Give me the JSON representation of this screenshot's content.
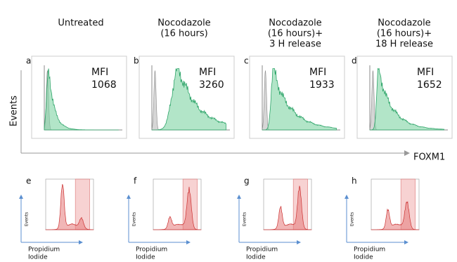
{
  "columns": [
    {
      "title": [
        "Untreated"
      ]
    },
    {
      "title": [
        "Nocodazole",
        "(16 hours)"
      ]
    },
    {
      "title": [
        "Nocodazole",
        "(16 hours)+",
        "3 H release"
      ]
    },
    {
      "title": [
        "Nocodazole",
        "(16 hours)+",
        "18 H release"
      ]
    }
  ],
  "top_panels": [
    {
      "letter": "a",
      "mfi_label": "MFI",
      "mfi_value": "1068"
    },
    {
      "letter": "b",
      "mfi_label": "MFI",
      "mfi_value": "3260"
    },
    {
      "letter": "c",
      "mfi_label": "MFI",
      "mfi_value": "1933"
    },
    {
      "letter": "d",
      "mfi_label": "MFI",
      "mfi_value": "1652"
    }
  ],
  "axis": {
    "y_label": "Events",
    "x_label": "FOXM1"
  },
  "bottom_panels": [
    {
      "letter": "e",
      "y_label": "Events",
      "x_label": [
        "Propidium",
        "Iodide"
      ]
    },
    {
      "letter": "f",
      "y_label": "Events",
      "x_label": [
        "Propidium",
        "Iodide"
      ]
    },
    {
      "letter": "g",
      "y_label": "Events",
      "x_label": [
        "Propidium",
        "Iodide"
      ]
    },
    {
      "letter": "h",
      "y_label": "Events",
      "x_label": [
        "Propidium",
        "Iodide"
      ]
    }
  ]
}
